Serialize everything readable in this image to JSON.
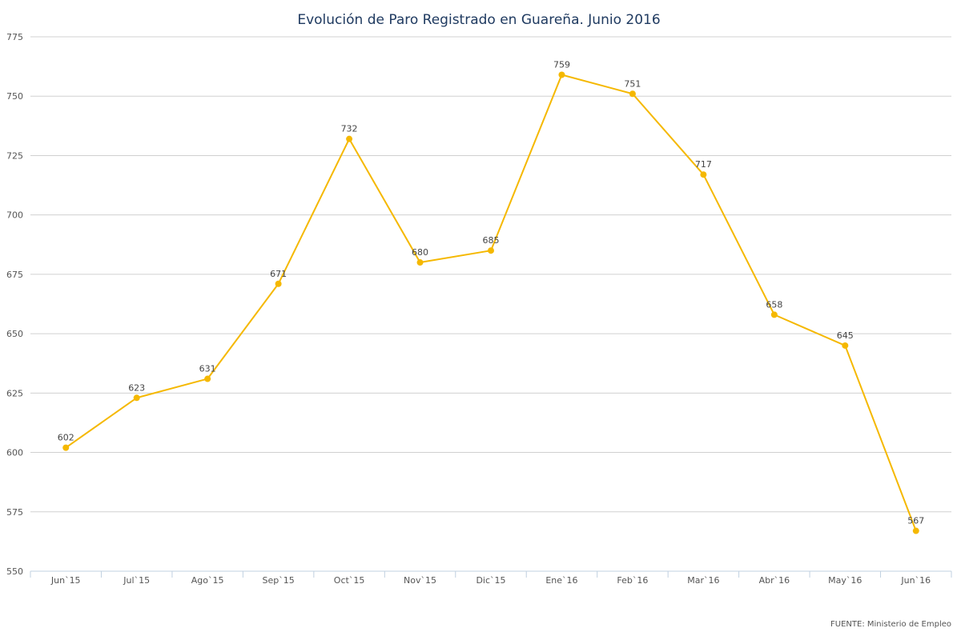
{
  "chart_data": {
    "type": "line",
    "title": "Evolución de Paro Registrado en Guareña. Junio 2016",
    "categories": [
      "Jun`15",
      "Jul`15",
      "Ago`15",
      "Sep`15",
      "Oct`15",
      "Nov`15",
      "Dic`15",
      "Ene`16",
      "Feb`16",
      "Mar`16",
      "Abr`16",
      "May`16",
      "Jun`16"
    ],
    "series": [
      {
        "values": [
          602,
          623,
          631,
          671,
          732,
          680,
          685,
          759,
          751,
          717,
          658,
          645,
          567
        ],
        "color": "#f5b800"
      }
    ],
    "ylim": [
      550,
      775
    ],
    "yticks": [
      550,
      575,
      600,
      625,
      650,
      675,
      700,
      725,
      750,
      775
    ],
    "grid": true,
    "legend": "none",
    "data_labels": true
  },
  "source_note": "FUENTE: Ministerio de Empleo"
}
